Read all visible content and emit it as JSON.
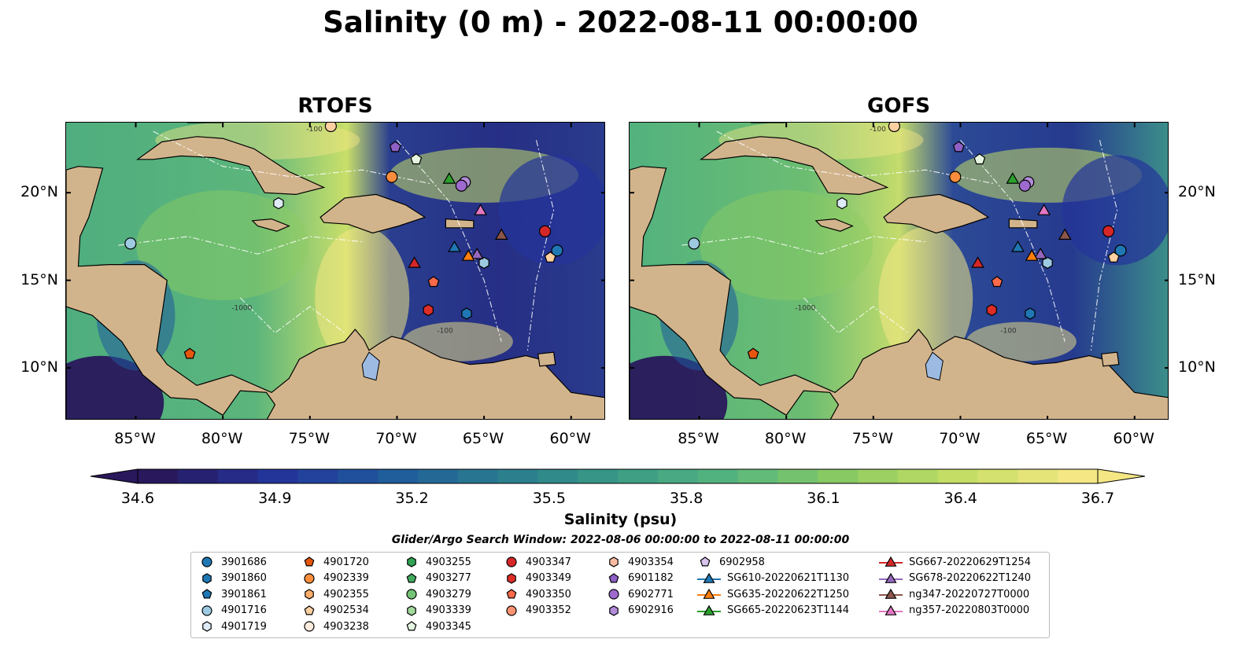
{
  "title": "Salinity (0 m) - 2022-08-11 00:00:00",
  "panels": [
    {
      "title": "RTOFS"
    },
    {
      "title": "GOFS"
    }
  ],
  "map": {
    "lon_range": [
      -89,
      -58
    ],
    "lat_range": [
      7,
      24
    ],
    "lat_ticks": [
      {
        "value": 20,
        "label": "20°N"
      },
      {
        "value": 15,
        "label": "15°N"
      },
      {
        "value": 10,
        "label": "10°N"
      }
    ],
    "lon_ticks": [
      {
        "value": -85,
        "label": "85°W"
      },
      {
        "value": -80,
        "label": "80°W"
      },
      {
        "value": -75,
        "label": "75°W"
      },
      {
        "value": -70,
        "label": "70°W"
      },
      {
        "value": -65,
        "label": "65°W"
      },
      {
        "value": -60,
        "label": "60°W"
      }
    ],
    "land_color": "#d2b48c",
    "lake_color": "#9dbbe2",
    "contour_labels": [
      "-100",
      "-1000"
    ]
  },
  "colorbar": {
    "label": "Salinity (psu)",
    "range": [
      34.6,
      36.7
    ],
    "ticks": [
      "34.6",
      "34.9",
      "35.2",
      "35.5",
      "35.8",
      "36.1",
      "36.4",
      "36.7"
    ],
    "colormap": [
      "#29185c",
      "#24339a",
      "#1f5a9c",
      "#2a7c8e",
      "#399a86",
      "#56b67e",
      "#8dcb62",
      "#c6df65",
      "#f4e784"
    ],
    "extend": "both"
  },
  "search_window": "Glider/Argo Search Window: 2022-08-06 00:00:00 to 2022-08-11 00:00:00",
  "legend": {
    "columns": [
      [
        {
          "label": "3901686",
          "marker": "circle",
          "color": "#1f77b4"
        },
        {
          "label": "3901860",
          "marker": "hexagon",
          "color": "#1f77b4"
        },
        {
          "label": "3901861",
          "marker": "pentagon",
          "color": "#1f77b4"
        },
        {
          "label": "4901716",
          "marker": "circle",
          "color": "#9ecae1"
        },
        {
          "label": "4901719",
          "marker": "hexagon",
          "color": "#deebf7"
        }
      ],
      [
        {
          "label": "4901720",
          "marker": "pentagon",
          "color": "#e6550d"
        },
        {
          "label": "4902339",
          "marker": "circle",
          "color": "#fd8d3c"
        },
        {
          "label": "4902355",
          "marker": "hexagon",
          "color": "#fdae6b"
        },
        {
          "label": "4902534",
          "marker": "pentagon",
          "color": "#fdd0a2"
        },
        {
          "label": "4903238",
          "marker": "circle",
          "color": "#feedde"
        }
      ],
      [
        {
          "label": "4903255",
          "marker": "hexagon",
          "color": "#31a354"
        },
        {
          "label": "4903277",
          "marker": "pentagon",
          "color": "#41ab5d"
        },
        {
          "label": "4903279",
          "marker": "circle",
          "color": "#74c476"
        },
        {
          "label": "4903339",
          "marker": "hexagon",
          "color": "#a1d99b"
        },
        {
          "label": "4903345",
          "marker": "pentagon",
          "color": "#e5f5e0"
        }
      ],
      [
        {
          "label": "4903347",
          "marker": "circle",
          "color": "#d62728"
        },
        {
          "label": "4903349",
          "marker": "hexagon",
          "color": "#de2d26"
        },
        {
          "label": "4903350",
          "marker": "pentagon",
          "color": "#fb6a4a"
        },
        {
          "label": "4903352",
          "marker": "circle",
          "color": "#fc9272"
        }
      ],
      [
        {
          "label": "4903354",
          "marker": "hexagon",
          "color": "#fcbba1"
        },
        {
          "label": "6901182",
          "marker": "pentagon",
          "color": "#8e5fc5"
        },
        {
          "label": "6902771",
          "marker": "circle",
          "color": "#9e6ad0"
        },
        {
          "label": "6902916",
          "marker": "hexagon",
          "color": "#b28bd9"
        }
      ],
      [
        {
          "label": "6902958",
          "marker": "pentagon",
          "color": "#d8c4ef"
        },
        {
          "label": "SG610-20220621T1130",
          "marker": "triangle",
          "color": "#1f77b4"
        },
        {
          "label": "SG635-20220622T1250",
          "marker": "triangle",
          "color": "#ff7f0e"
        },
        {
          "label": "SG665-20220623T1144",
          "marker": "triangle",
          "color": "#2ca02c"
        }
      ],
      [
        {
          "label": "SG667-20220629T1254",
          "marker": "triangle",
          "color": "#d62728"
        },
        {
          "label": "SG678-20220622T1240",
          "marker": "triangle",
          "color": "#9467bd"
        },
        {
          "label": "ng347-20220727T0000",
          "marker": "triangle",
          "color": "#8c564b"
        },
        {
          "label": "ng357-20220803T0000",
          "marker": "triangle",
          "color": "#e377c2"
        }
      ]
    ]
  },
  "markers": [
    {
      "lon": -61.5,
      "lat": 17.8,
      "marker": "circle",
      "color": "#d62728"
    },
    {
      "lon": -60.8,
      "lat": 16.7,
      "marker": "circle",
      "color": "#1f77b4"
    },
    {
      "lon": -85.3,
      "lat": 17.1,
      "marker": "circle",
      "color": "#9ecae1"
    },
    {
      "lon": -76.8,
      "lat": 19.4,
      "marker": "hexagon",
      "color": "#deebf7"
    },
    {
      "lon": -70.1,
      "lat": 22.6,
      "marker": "pentagon",
      "color": "#8e5fc5"
    },
    {
      "lon": -68.9,
      "lat": 21.9,
      "marker": "pentagon",
      "color": "#e5f5e0"
    },
    {
      "lon": -70.3,
      "lat": 20.9,
      "marker": "circle",
      "color": "#fd8d3c"
    },
    {
      "lon": -66.1,
      "lat": 20.6,
      "marker": "circle",
      "color": "#b28bd9"
    },
    {
      "lon": -66.3,
      "lat": 20.4,
      "marker": "circle",
      "color": "#9e6ad0"
    },
    {
      "lon": -81.9,
      "lat": 10.8,
      "marker": "pentagon",
      "color": "#e6550d"
    },
    {
      "lon": -67.9,
      "lat": 14.9,
      "marker": "pentagon",
      "color": "#fb6a4a"
    },
    {
      "lon": -68.2,
      "lat": 13.3,
      "marker": "hexagon",
      "color": "#de2d26"
    },
    {
      "lon": -66.0,
      "lat": 13.1,
      "marker": "hexagon",
      "color": "#1f77b4"
    },
    {
      "lon": -65.0,
      "lat": 16.0,
      "marker": "hexagon",
      "color": "#9ecae1"
    },
    {
      "lon": -73.8,
      "lat": 23.8,
      "marker": "circle",
      "color": "#fdd0a2"
    },
    {
      "lon": -61.2,
      "lat": 16.3,
      "marker": "pentagon",
      "color": "#fdd0a2"
    },
    {
      "lon": -67.0,
      "lat": 20.8,
      "marker": "triangle",
      "color": "#2ca02c"
    },
    {
      "lon": -65.2,
      "lat": 19.0,
      "marker": "triangle",
      "color": "#e377c2"
    },
    {
      "lon": -64.0,
      "lat": 17.6,
      "marker": "triangle",
      "color": "#8c564b"
    },
    {
      "lon": -66.7,
      "lat": 16.9,
      "marker": "triangle",
      "color": "#1f77b4"
    },
    {
      "lon": -65.4,
      "lat": 16.5,
      "marker": "triangle",
      "color": "#9467bd"
    },
    {
      "lon": -65.9,
      "lat": 16.4,
      "marker": "triangle",
      "color": "#ff7f0e"
    },
    {
      "lon": -69.0,
      "lat": 16.0,
      "marker": "triangle",
      "color": "#d62728"
    }
  ]
}
